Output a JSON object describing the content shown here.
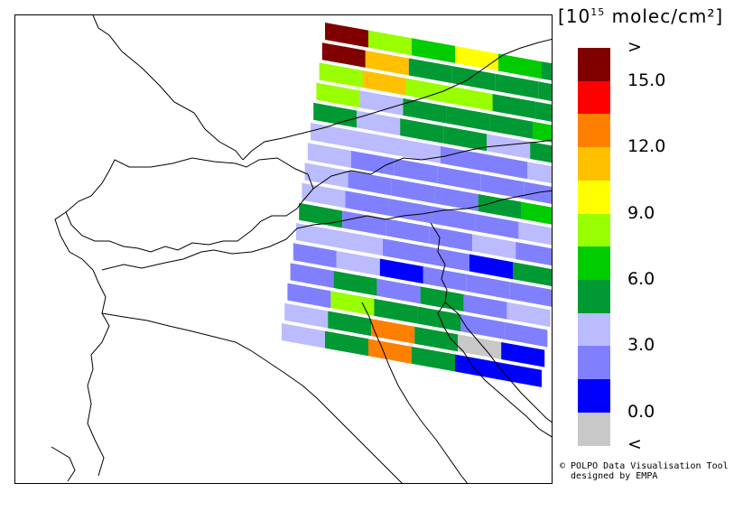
{
  "unit": {
    "open": "[10",
    "exponent": "15",
    "rest": " molec/cm²]"
  },
  "legend": [
    {
      "color": "#800000",
      "label": ">"
    },
    {
      "color": "#ff0000",
      "label": "15.0"
    },
    {
      "color": "#ff8000",
      "label": ""
    },
    {
      "color": "#ffc000",
      "label": "12.0"
    },
    {
      "color": "#ffff00",
      "label": ""
    },
    {
      "color": "#99ff00",
      "label": "9.0"
    },
    {
      "color": "#00cc00",
      "label": ""
    },
    {
      "color": "#009933",
      "label": "6.0"
    },
    {
      "color": "#bbbbff",
      "label": ""
    },
    {
      "color": "#8080ff",
      "label": "3.0"
    },
    {
      "color": "#0000ff",
      "label": ""
    },
    {
      "color": "#c8c8c8",
      "label": "0.0"
    },
    {
      "color": "",
      "label": "<"
    }
  ],
  "credit": "© POLPO Data Visualisation Tool\n  designed by EMPA",
  "swath_rows": [
    [
      "#800000",
      "#99ff00",
      "#00cc00",
      "#ffff00",
      "#00cc00",
      "#009933"
    ],
    [
      "#800000",
      "#ffc000",
      "#009933",
      "#009933",
      "#009933",
      "#009933"
    ],
    [
      "#99ff00",
      "#ffc000",
      "#99ff00",
      "#99ff00",
      "#009933",
      "#009933"
    ],
    [
      "#99ff00",
      "#bbbbff",
      "#009933",
      "#009933",
      "#009933",
      "#00cc00"
    ],
    [
      "#009933",
      "#bbbbff",
      "#009933",
      "#009933",
      "#bbbbff",
      "#009933"
    ],
    [
      "#bbbbff",
      "#bbbbff",
      "#bbbbff",
      "#8080ff",
      "#8080ff",
      "#bbbbff"
    ],
    [
      "#bbbbff",
      "#8080ff",
      "#8080ff",
      "#8080ff",
      "#8080ff",
      "#8080ff"
    ],
    [
      "#bbbbff",
      "#8080ff",
      "#8080ff",
      "#8080ff",
      "#009933",
      "#00cc00"
    ],
    [
      "#bbbbff",
      "#8080ff",
      "#8080ff",
      "#8080ff",
      "#8080ff",
      "#bbbbff"
    ],
    [
      "#009933",
      "#8080ff",
      "#8080ff",
      "#8080ff",
      "#bbbbff",
      "#8080ff"
    ],
    [
      "#bbbbff",
      "#bbbbff",
      "#8080ff",
      "#8080ff",
      "#0000ff",
      "#009933"
    ],
    [
      "#8080ff",
      "#bbbbff",
      "#0000ff",
      "#8080ff",
      "#8080ff",
      "#8080ff"
    ],
    [
      "#8080ff",
      "#009933",
      "#8080ff",
      "#009933",
      "#8080ff",
      "#bbbbff"
    ],
    [
      "#8080ff",
      "#99ff00",
      "#009933",
      "#009933",
      "#8080ff",
      "#8080ff"
    ],
    [
      "#bbbbff",
      "#009933",
      "#ff8000",
      "#009933",
      "#c8c8c8",
      "#0000ff"
    ],
    [
      "#bbbbff",
      "#009933",
      "#ff8000",
      "#009933",
      "#0000ff",
      "#0000ff"
    ]
  ]
}
